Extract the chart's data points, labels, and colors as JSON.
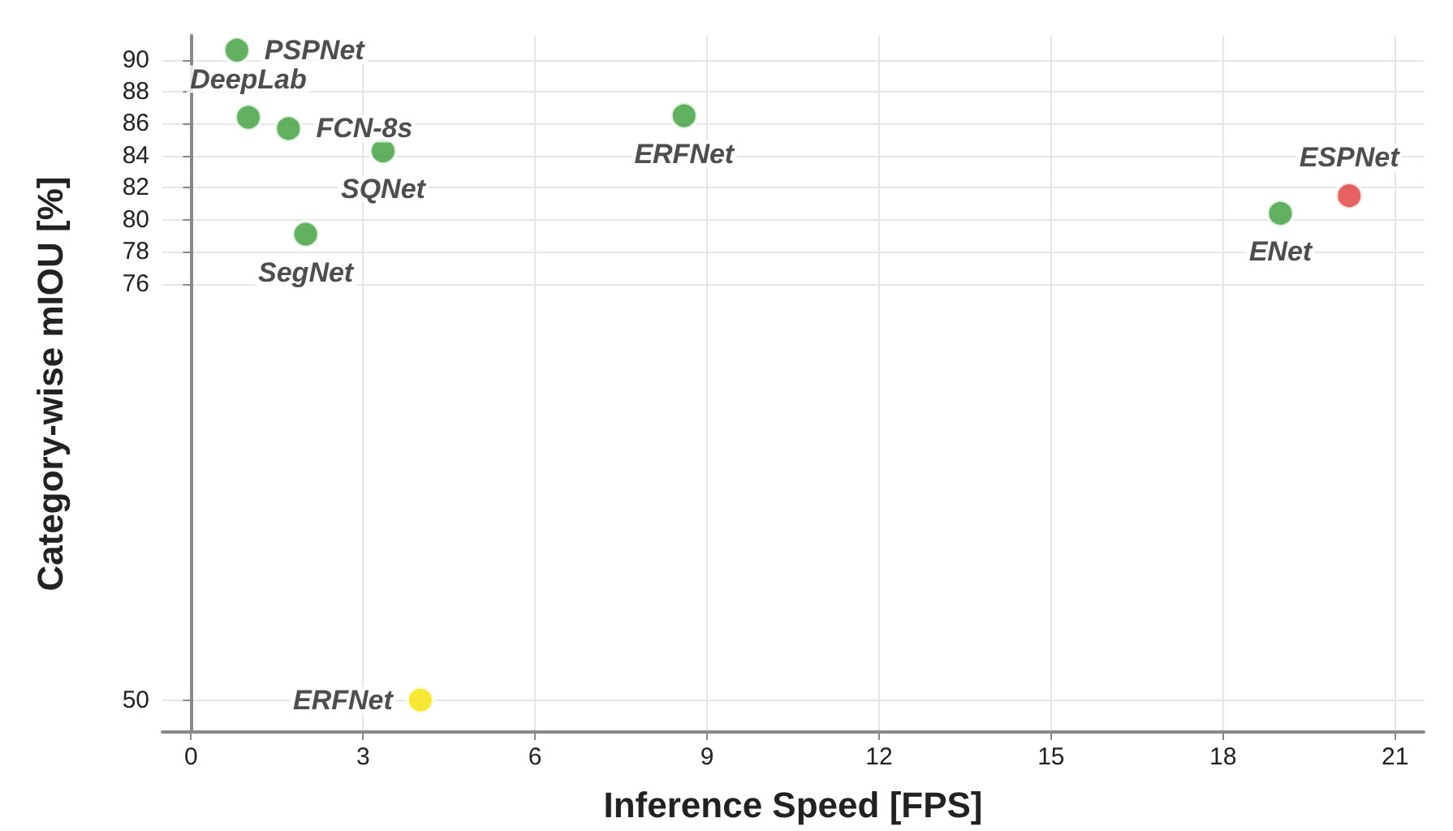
{
  "chart_data": {
    "type": "scatter",
    "xlabel": "Inference Speed [FPS]",
    "ylabel": "Category-wise mIOU [%]",
    "x": [
      0.8,
      1.0,
      1.7,
      3.35,
      2.0,
      8.6,
      19.0,
      20.2,
      4.0
    ],
    "values": [
      90.6,
      86.4,
      85.7,
      84.3,
      79.1,
      86.5,
      80.4,
      81.5,
      50
    ],
    "value_labels": [
      "PSPNet",
      "DeepLab",
      "FCN-8s",
      "SQNet",
      "SegNet",
      "ERFNet",
      "ENet",
      "ESPNet",
      "ERFNet"
    ],
    "colors": [
      "#3a9e3a",
      "#3a9e3a",
      "#3a9e3a",
      "#3a9e3a",
      "#3a9e3a",
      "#3a9e3a",
      "#3a9e3a",
      "#e03a3a",
      "#f5e400"
    ],
    "xlim": [
      -0.5,
      21.5
    ],
    "xticks": [
      0,
      3,
      6,
      9,
      12,
      15,
      18,
      21
    ],
    "ylim": [
      48,
      91.5
    ],
    "yticks": [
      50,
      76,
      78,
      80,
      82,
      84,
      86,
      88,
      90
    ],
    "grid": true,
    "marker": "circle"
  }
}
